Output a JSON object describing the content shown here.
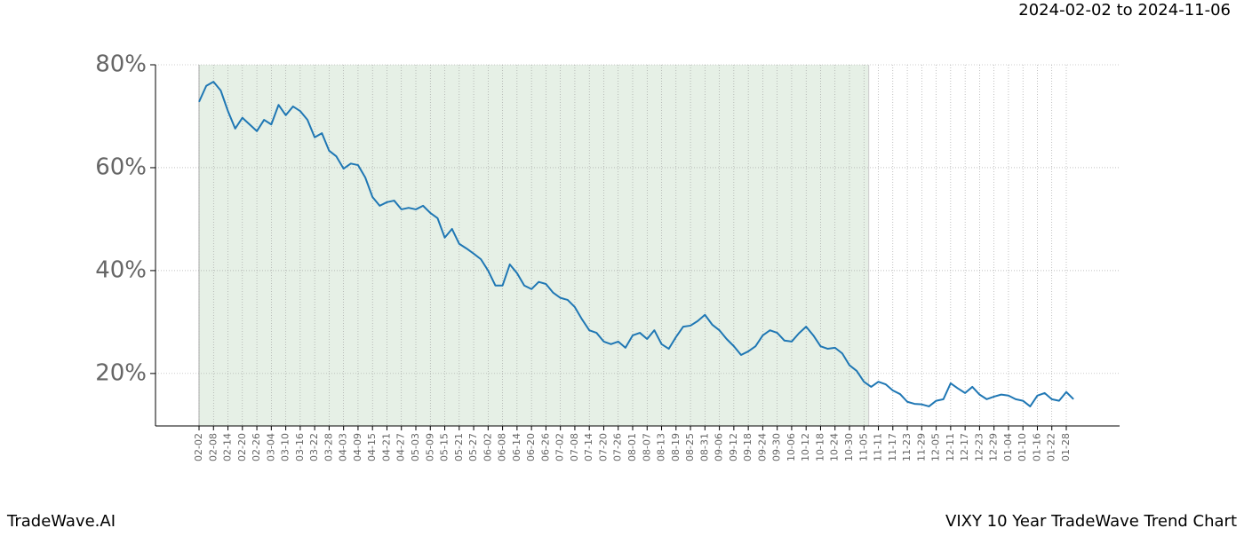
{
  "chart_data": {
    "type": "line",
    "subtitle": "2024-02-02 to 2024-11-06",
    "footer_left": "TradeWave.AI",
    "footer_right": "VIXY 10 Year TradeWave Trend Chart",
    "categories": [
      "02-02",
      null,
      "02-08",
      null,
      "02-14",
      null,
      "02-20",
      null,
      "02-26",
      null,
      "03-04",
      null,
      "03-10",
      null,
      "03-16",
      null,
      "03-22",
      null,
      "03-28",
      null,
      "04-03",
      null,
      "04-09",
      null,
      "04-15",
      null,
      "04-21",
      null,
      "04-27",
      null,
      "05-03",
      null,
      "05-09",
      null,
      "05-15",
      null,
      "05-21",
      null,
      "05-27",
      null,
      "06-02",
      null,
      "06-08",
      null,
      "06-14",
      null,
      "06-20",
      null,
      "06-26",
      null,
      "07-02",
      null,
      "07-08",
      null,
      "07-14",
      null,
      "07-20",
      null,
      "07-26",
      null,
      "08-01",
      null,
      "08-07",
      null,
      "08-13",
      null,
      "08-19",
      null,
      "08-25",
      null,
      "08-31",
      null,
      "09-06",
      null,
      "09-12",
      null,
      "09-18",
      null,
      "09-24",
      null,
      "09-30",
      null,
      "10-06",
      null,
      "10-12",
      null,
      "10-18",
      null,
      "10-24",
      null,
      "10-30",
      null,
      "11-05",
      null,
      "11-11",
      null,
      "11-17",
      null,
      "11-23",
      null,
      "11-29",
      null,
      "12-05",
      null,
      "12-11",
      null,
      "12-17",
      null,
      "12-23",
      null,
      "12-29",
      null,
      "01-04",
      null,
      "01-10",
      null,
      "01-16",
      null,
      "01-22",
      null,
      "01-28",
      null
    ],
    "series": [
      {
        "name": "VIXY",
        "color": "#1f77b4",
        "values": [
          72.8,
          75.9,
          76.7,
          75,
          71,
          67.6,
          69.7,
          68.4,
          67.1,
          69.3,
          68.4,
          72.2,
          70.2,
          71.9,
          71,
          69.3,
          65.9,
          66.7,
          63.3,
          62.2,
          59.8,
          60.8,
          60.5,
          58.1,
          54.3,
          52.6,
          53.3,
          53.6,
          51.9,
          52.2,
          51.9,
          52.6,
          51.2,
          50.2,
          46.4,
          48.1,
          45.2,
          44.3,
          43.3,
          42.2,
          40,
          37.1,
          37.1,
          41.2,
          39.5,
          37.1,
          36.4,
          37.8,
          37.4,
          35.7,
          34.7,
          34.3,
          32.9,
          30.5,
          28.4,
          27.9,
          26.2,
          25.7,
          26.2,
          25,
          27.4,
          27.9,
          26.7,
          28.4,
          25.7,
          24.8,
          27.1,
          29.1,
          29.3,
          30.2,
          31.4,
          29.5,
          28.4,
          26.7,
          25.3,
          23.6,
          24.3,
          25.3,
          27.4,
          28.4,
          27.9,
          26.4,
          26.2,
          27.8,
          29.1,
          27.4,
          25.3,
          24.8,
          25,
          23.9,
          21.6,
          20.5,
          18.4,
          17.4,
          18.4,
          17.9,
          16.7,
          16,
          14.5,
          14.1,
          14,
          13.6,
          14.7,
          15,
          18.1,
          17.1,
          16.2,
          17.4,
          15.9,
          15,
          15.5,
          15.9,
          15.7,
          15,
          14.7,
          13.6,
          15.7,
          16.2,
          15,
          14.7,
          16.4,
          15
        ]
      }
    ],
    "ylim": [
      9.8,
      80
    ],
    "yticks": [
      {
        "value": 20,
        "label": "20%"
      },
      {
        "value": 40,
        "label": "40%"
      },
      {
        "value": 60,
        "label": "60%"
      },
      {
        "value": 80,
        "label": "80%"
      }
    ],
    "grid": true,
    "shade_color": "#e6f0e6"
  }
}
